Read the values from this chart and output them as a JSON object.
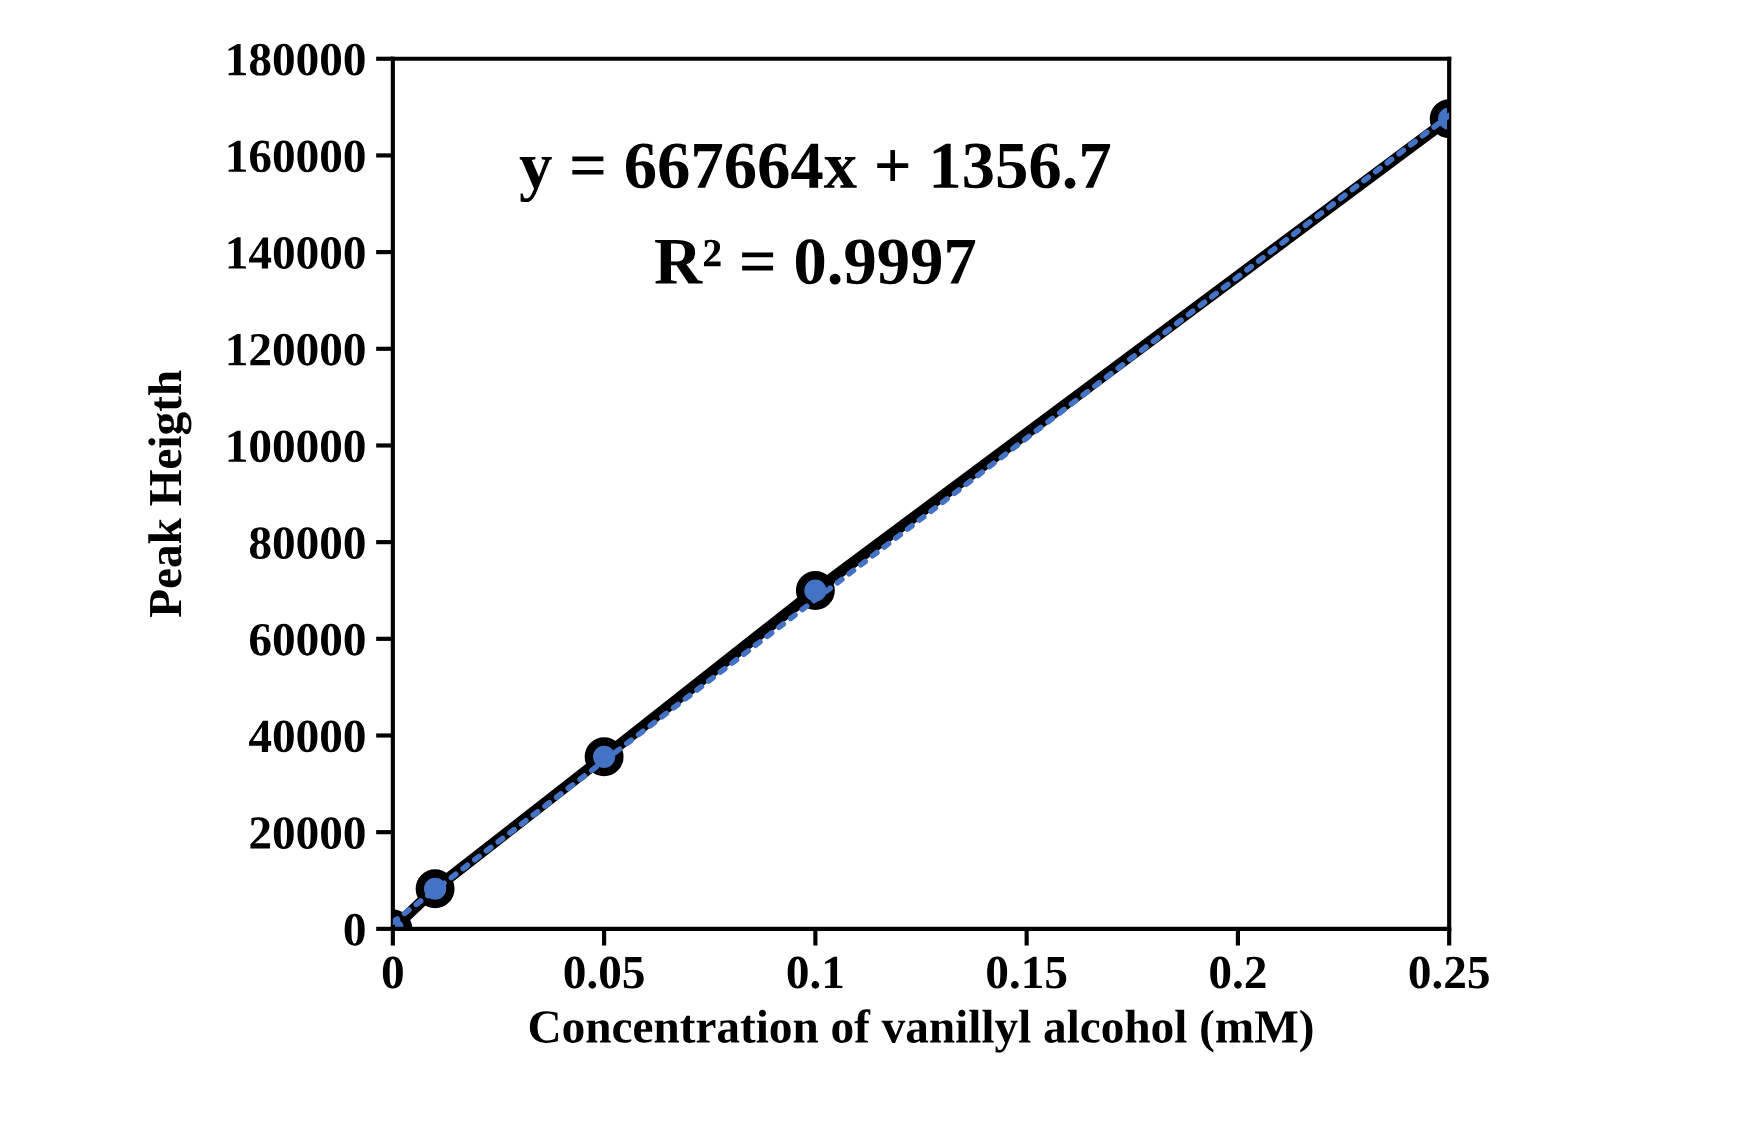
{
  "chart_data": {
    "type": "line",
    "xlabel": "Concentration of vanillyl alcohol (mM)",
    "ylabel": "Peak Heigth",
    "x": [
      0,
      0.01,
      0.05,
      0.1,
      0.25
    ],
    "series": [
      {
        "color": "#000000",
        "values": [
          0,
          8300,
          35600,
          70000,
          167600
        ],
        "marker": "circle",
        "line_style": "solid"
      },
      {
        "type": "line",
        "x": [
          0,
          0.25
        ],
        "color": "#4472c4",
        "values": [
          1356.7,
          168272.7
        ],
        "marker": "none",
        "line_style": "dotted"
      }
    ],
    "xlim": [
      0,
      0.25
    ],
    "xticks": [
      0,
      0.05,
      0.1,
      0.15,
      0.2,
      0.25
    ],
    "ylim": [
      0,
      180000
    ],
    "yticks": [
      0,
      20000,
      40000,
      60000,
      80000,
      100000,
      120000,
      140000,
      160000,
      180000
    ],
    "annotations": [
      "y = 667664x + 1356.7",
      "R² = 0.9997"
    ],
    "grid": false,
    "legend": false
  }
}
